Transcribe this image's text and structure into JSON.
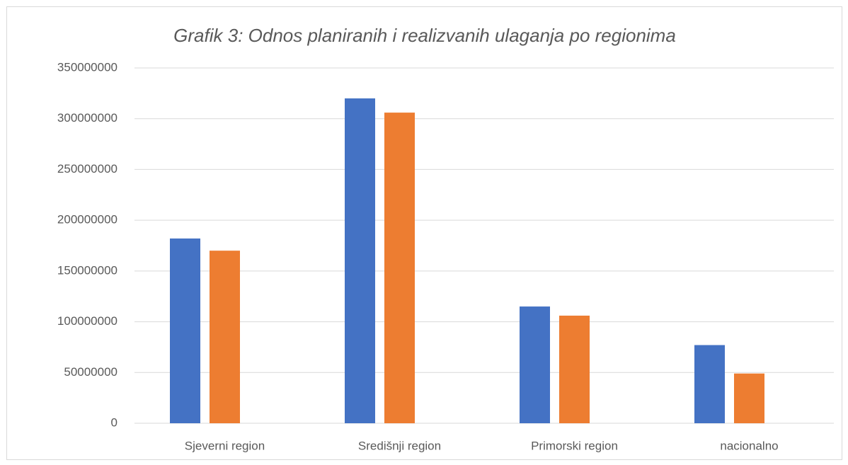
{
  "chart_data": {
    "type": "bar",
    "title": "Grafik 3: Odnos planiranih i realizvanih ulaganja po regionima",
    "categories": [
      "Sjeverni region",
      "Središnji region",
      "Primorski region",
      "nacionalno"
    ],
    "series": [
      {
        "color": "#4472c4",
        "values": [
          182000000,
          320000000,
          115000000,
          77000000
        ]
      },
      {
        "color": "#ed7d31",
        "values": [
          170000000,
          306000000,
          106000000,
          49000000
        ]
      }
    ],
    "ylim": [
      0,
      350000000
    ],
    "yticks": [
      0,
      50000000,
      100000000,
      150000000,
      200000000,
      250000000,
      300000000,
      350000000
    ],
    "grid": true
  }
}
